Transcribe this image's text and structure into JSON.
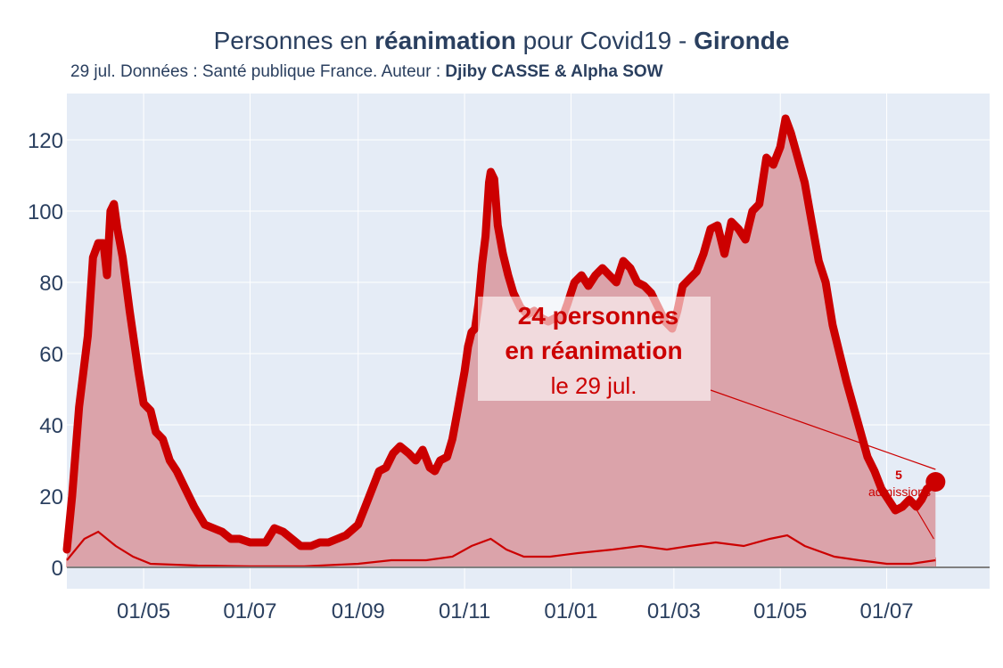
{
  "title": {
    "prefix": "Personnes en ",
    "bold1": "réanimation",
    "middle": " pour Covid19 - ",
    "bold2": "Gironde"
  },
  "subtitle": {
    "text": "29 jul. Données : Santé publique France. Auteur : ",
    "bold": "Djiby CASSE & Alpha SOW"
  },
  "annotation": {
    "line1": "24 personnes",
    "line2": "en réanimation",
    "line3": "le 29 jul."
  },
  "admissions": {
    "count": "5",
    "label": "admissions"
  },
  "colors": {
    "line": "#cc0000",
    "fill": "#dba3aa",
    "plot_bg": "#e5ecf6",
    "grid": "#ffffff",
    "text": "#2a3f5f",
    "zero_line": "#808080"
  },
  "chart_data": {
    "type": "area",
    "y_range": [
      -6,
      133
    ],
    "y_ticks": [
      0,
      20,
      40,
      60,
      80,
      100,
      120
    ],
    "x_start": "2020-03-18",
    "x_end": "2021-08-29",
    "x_ticks": [
      {
        "date": "2020-05-01",
        "label": "01/05"
      },
      {
        "date": "2020-07-01",
        "label": "01/07"
      },
      {
        "date": "2020-09-01",
        "label": "01/09"
      },
      {
        "date": "2020-11-01",
        "label": "01/11"
      },
      {
        "date": "2021-01-01",
        "label": "01/01"
      },
      {
        "date": "2021-03-01",
        "label": "01/03"
      },
      {
        "date": "2021-05-01",
        "label": "01/05"
      },
      {
        "date": "2021-07-01",
        "label": "01/07"
      }
    ],
    "series": [
      {
        "name": "Personnes en réanimation",
        "points": [
          [
            "2020-03-18",
            5
          ],
          [
            "2020-03-21",
            20
          ],
          [
            "2020-03-25",
            45
          ],
          [
            "2020-03-30",
            65
          ],
          [
            "2020-04-02",
            87
          ],
          [
            "2020-04-05",
            91
          ],
          [
            "2020-04-08",
            91
          ],
          [
            "2020-04-10",
            82
          ],
          [
            "2020-04-12",
            100
          ],
          [
            "2020-04-14",
            102
          ],
          [
            "2020-04-16",
            95
          ],
          [
            "2020-04-19",
            87
          ],
          [
            "2020-04-23",
            72
          ],
          [
            "2020-04-28",
            55
          ],
          [
            "2020-05-01",
            46
          ],
          [
            "2020-05-05",
            44
          ],
          [
            "2020-05-08",
            38
          ],
          [
            "2020-05-12",
            36
          ],
          [
            "2020-05-16",
            30
          ],
          [
            "2020-05-20",
            27
          ],
          [
            "2020-05-25",
            22
          ],
          [
            "2020-05-30",
            17
          ],
          [
            "2020-06-05",
            12
          ],
          [
            "2020-06-10",
            11
          ],
          [
            "2020-06-15",
            10
          ],
          [
            "2020-06-20",
            8
          ],
          [
            "2020-06-25",
            8
          ],
          [
            "2020-07-01",
            7
          ],
          [
            "2020-07-10",
            7
          ],
          [
            "2020-07-15",
            11
          ],
          [
            "2020-07-20",
            10
          ],
          [
            "2020-07-25",
            8
          ],
          [
            "2020-07-30",
            6
          ],
          [
            "2020-08-05",
            6
          ],
          [
            "2020-08-10",
            7
          ],
          [
            "2020-08-15",
            7
          ],
          [
            "2020-08-20",
            8
          ],
          [
            "2020-08-25",
            9
          ],
          [
            "2020-09-01",
            12
          ],
          [
            "2020-09-05",
            17
          ],
          [
            "2020-09-09",
            22
          ],
          [
            "2020-09-13",
            27
          ],
          [
            "2020-09-17",
            28
          ],
          [
            "2020-09-21",
            32
          ],
          [
            "2020-09-25",
            34
          ],
          [
            "2020-09-30",
            32
          ],
          [
            "2020-10-04",
            30
          ],
          [
            "2020-10-08",
            33
          ],
          [
            "2020-10-12",
            28
          ],
          [
            "2020-10-15",
            27
          ],
          [
            "2020-10-18",
            30
          ],
          [
            "2020-10-22",
            31
          ],
          [
            "2020-10-25",
            36
          ],
          [
            "2020-10-28",
            44
          ],
          [
            "2020-11-01",
            55
          ],
          [
            "2020-11-03",
            62
          ],
          [
            "2020-11-05",
            66
          ],
          [
            "2020-11-07",
            67
          ],
          [
            "2020-11-09",
            74
          ],
          [
            "2020-11-11",
            85
          ],
          [
            "2020-11-13",
            93
          ],
          [
            "2020-11-15",
            108
          ],
          [
            "2020-11-16",
            111
          ],
          [
            "2020-11-18",
            109
          ],
          [
            "2020-11-20",
            96
          ],
          [
            "2020-11-23",
            88
          ],
          [
            "2020-11-26",
            82
          ],
          [
            "2020-11-29",
            77
          ],
          [
            "2020-12-03",
            73
          ],
          [
            "2020-12-07",
            71
          ],
          [
            "2020-12-11",
            72
          ],
          [
            "2020-12-15",
            70
          ],
          [
            "2020-12-19",
            69
          ],
          [
            "2020-12-23",
            70
          ],
          [
            "2020-12-27",
            70
          ],
          [
            "2020-12-30",
            74
          ],
          [
            "2021-01-03",
            80
          ],
          [
            "2021-01-07",
            82
          ],
          [
            "2021-01-11",
            79
          ],
          [
            "2021-01-15",
            82
          ],
          [
            "2021-01-19",
            84
          ],
          [
            "2021-01-23",
            82
          ],
          [
            "2021-01-27",
            80
          ],
          [
            "2021-01-31",
            86
          ],
          [
            "2021-02-04",
            84
          ],
          [
            "2021-02-08",
            80
          ],
          [
            "2021-02-12",
            79
          ],
          [
            "2021-02-16",
            77
          ],
          [
            "2021-02-20",
            73
          ],
          [
            "2021-02-24",
            69
          ],
          [
            "2021-02-28",
            67
          ],
          [
            "2021-03-03",
            72
          ],
          [
            "2021-03-06",
            79
          ],
          [
            "2021-03-10",
            81
          ],
          [
            "2021-03-14",
            83
          ],
          [
            "2021-03-18",
            88
          ],
          [
            "2021-03-22",
            95
          ],
          [
            "2021-03-26",
            96
          ],
          [
            "2021-03-30",
            88
          ],
          [
            "2021-04-03",
            97
          ],
          [
            "2021-04-07",
            95
          ],
          [
            "2021-04-11",
            92
          ],
          [
            "2021-04-15",
            100
          ],
          [
            "2021-04-19",
            102
          ],
          [
            "2021-04-23",
            115
          ],
          [
            "2021-04-27",
            113
          ],
          [
            "2021-05-01",
            118
          ],
          [
            "2021-05-04",
            126
          ],
          [
            "2021-05-07",
            122
          ],
          [
            "2021-05-11",
            115
          ],
          [
            "2021-05-15",
            108
          ],
          [
            "2021-05-19",
            97
          ],
          [
            "2021-05-23",
            86
          ],
          [
            "2021-05-27",
            80
          ],
          [
            "2021-05-31",
            68
          ],
          [
            "2021-06-04",
            60
          ],
          [
            "2021-06-08",
            52
          ],
          [
            "2021-06-12",
            45
          ],
          [
            "2021-06-16",
            38
          ],
          [
            "2021-06-20",
            31
          ],
          [
            "2021-06-24",
            27
          ],
          [
            "2021-06-28",
            22
          ],
          [
            "2021-07-02",
            19
          ],
          [
            "2021-07-06",
            16
          ],
          [
            "2021-07-10",
            17
          ],
          [
            "2021-07-14",
            19
          ],
          [
            "2021-07-18",
            17
          ],
          [
            "2021-07-21",
            19
          ],
          [
            "2021-07-24",
            22
          ],
          [
            "2021-07-27",
            23
          ],
          [
            "2021-07-29",
            24
          ]
        ]
      },
      {
        "name": "Admissions",
        "points": [
          [
            "2020-03-18",
            2
          ],
          [
            "2020-03-28",
            8
          ],
          [
            "2020-04-05",
            10
          ],
          [
            "2020-04-15",
            6
          ],
          [
            "2020-04-25",
            3
          ],
          [
            "2020-05-05",
            1
          ],
          [
            "2020-06-01",
            0.5
          ],
          [
            "2020-07-01",
            0.3
          ],
          [
            "2020-08-01",
            0.3
          ],
          [
            "2020-09-01",
            1
          ],
          [
            "2020-09-20",
            2
          ],
          [
            "2020-10-10",
            2
          ],
          [
            "2020-10-25",
            3
          ],
          [
            "2020-11-05",
            6
          ],
          [
            "2020-11-16",
            8
          ],
          [
            "2020-11-25",
            5
          ],
          [
            "2020-12-05",
            3
          ],
          [
            "2020-12-20",
            3
          ],
          [
            "2021-01-05",
            4
          ],
          [
            "2021-01-25",
            5
          ],
          [
            "2021-02-10",
            6
          ],
          [
            "2021-02-25",
            5
          ],
          [
            "2021-03-10",
            6
          ],
          [
            "2021-03-25",
            7
          ],
          [
            "2021-04-10",
            6
          ],
          [
            "2021-04-25",
            8
          ],
          [
            "2021-05-05",
            9
          ],
          [
            "2021-05-15",
            6
          ],
          [
            "2021-06-01",
            3
          ],
          [
            "2021-06-15",
            2
          ],
          [
            "2021-07-01",
            1
          ],
          [
            "2021-07-15",
            1
          ],
          [
            "2021-07-29",
            2
          ]
        ]
      }
    ],
    "last_value": {
      "date": "2021-07-29",
      "value": 24
    }
  }
}
